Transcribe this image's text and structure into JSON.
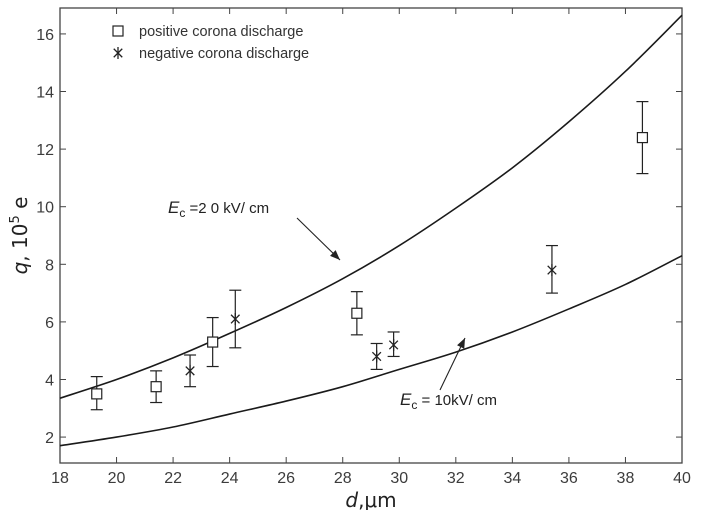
{
  "chart_data": {
    "type": "scatter",
    "xlabel": {
      "italic": "d",
      "rest": ",μm"
    },
    "ylabel": {
      "italic": "q",
      "rest": ", 10",
      "sup": "5",
      "tail": " e"
    },
    "xlim": [
      18,
      40
    ],
    "ylim": [
      1.1,
      16.9
    ],
    "xticks": [
      "18",
      "20",
      "22",
      "24",
      "26",
      "28",
      "30",
      "32",
      "34",
      "36",
      "38",
      "40"
    ],
    "yticks": [
      "2",
      "4",
      "6",
      "8",
      "10",
      "12",
      "14",
      "16"
    ],
    "grid": false,
    "legend_position": "top-left",
    "series": [
      {
        "name": "positive corona discharge",
        "marker": "square",
        "points": [
          {
            "x": 19.3,
            "y": 3.5,
            "ylo": 2.95,
            "yhi": 4.1
          },
          {
            "x": 21.4,
            "y": 3.75,
            "ylo": 3.2,
            "yhi": 4.3
          },
          {
            "x": 23.4,
            "y": 5.3,
            "ylo": 4.45,
            "yhi": 6.15
          },
          {
            "x": 28.5,
            "y": 6.3,
            "ylo": 5.55,
            "yhi": 7.05
          },
          {
            "x": 38.6,
            "y": 12.4,
            "ylo": 11.15,
            "yhi": 13.65
          }
        ]
      },
      {
        "name": "negative corona discharge",
        "marker": "asterisk",
        "points": [
          {
            "x": 22.6,
            "y": 4.3,
            "ylo": 3.75,
            "yhi": 4.85
          },
          {
            "x": 24.2,
            "y": 6.1,
            "ylo": 5.1,
            "yhi": 7.1
          },
          {
            "x": 29.2,
            "y": 4.8,
            "ylo": 4.35,
            "yhi": 5.25
          },
          {
            "x": 29.8,
            "y": 5.2,
            "ylo": 4.8,
            "yhi": 5.65
          },
          {
            "x": 35.4,
            "y": 7.8,
            "ylo": 7.0,
            "yhi": 8.65
          }
        ]
      }
    ],
    "curves": [
      {
        "label": {
          "italic": "E",
          "sub": "c",
          "text": " =2 0  kV/ cm"
        },
        "points": [
          [
            18,
            3.35
          ],
          [
            20,
            4.0
          ],
          [
            22,
            4.75
          ],
          [
            24,
            5.6
          ],
          [
            26,
            6.5
          ],
          [
            28,
            7.5
          ],
          [
            30,
            8.65
          ],
          [
            32,
            9.95
          ],
          [
            34,
            11.35
          ],
          [
            36,
            12.95
          ],
          [
            38,
            14.7
          ],
          [
            40,
            16.65
          ]
        ]
      },
      {
        "label": {
          "italic": "E",
          "sub": "c",
          "text": " = 10kV/ cm"
        },
        "points": [
          [
            18,
            1.7
          ],
          [
            20,
            2.0
          ],
          [
            22,
            2.35
          ],
          [
            24,
            2.8
          ],
          [
            26,
            3.25
          ],
          [
            28,
            3.75
          ],
          [
            30,
            4.35
          ],
          [
            32,
            4.95
          ],
          [
            34,
            5.65
          ],
          [
            36,
            6.45
          ],
          [
            38,
            7.3
          ],
          [
            40,
            8.3
          ]
        ]
      }
    ]
  }
}
